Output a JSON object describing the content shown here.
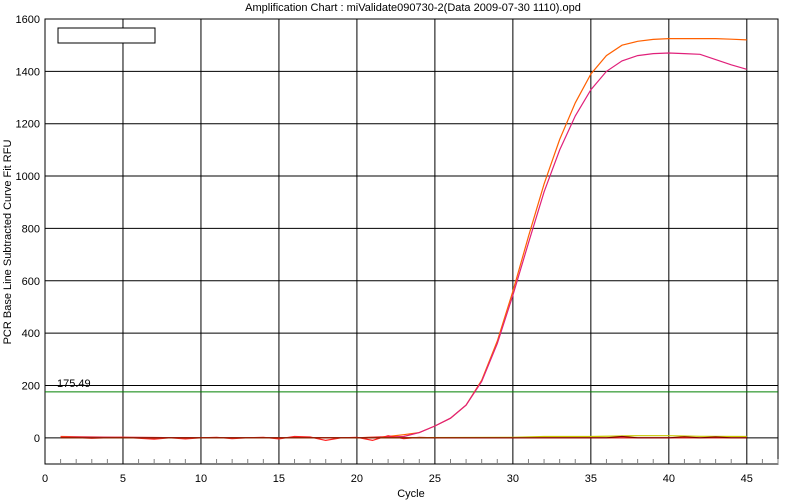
{
  "chart_data": {
    "type": "line",
    "title": "Amplification Chart : miValidate090730-2(Data 2009-07-30 1110).opd",
    "xlabel": "Cycle",
    "ylabel": "PCR Base Line Subtracted Curve Fit RFU",
    "xlim": [
      0,
      47
    ],
    "ylim": [
      -100,
      1600
    ],
    "x_ticks": [
      0,
      5,
      10,
      15,
      20,
      25,
      30,
      35,
      40,
      45
    ],
    "y_ticks": [
      0,
      200,
      400,
      600,
      800,
      1000,
      1200,
      1400,
      1600
    ],
    "grid": true,
    "threshold": {
      "value": 175.49,
      "label": "175.49",
      "color": "#008000"
    },
    "legend": {
      "placement": "top-left",
      "entries": []
    },
    "series": [
      {
        "color": "#ff6000",
        "x": [
          1,
          5,
          10,
          15,
          20,
          22,
          23,
          24,
          25,
          26,
          27,
          28,
          29,
          30,
          31,
          32,
          33,
          34,
          35,
          36,
          37,
          38,
          39,
          40,
          41,
          42,
          43,
          44,
          45
        ],
        "y": [
          5,
          2,
          0,
          0,
          0,
          5,
          12,
          20,
          45,
          75,
          125,
          220,
          370,
          560,
          770,
          970,
          1140,
          1280,
          1390,
          1460,
          1500,
          1515,
          1522,
          1525,
          1525,
          1525,
          1525,
          1523,
          1520
        ]
      },
      {
        "color": "#e0207a",
        "x": [
          1,
          5,
          10,
          15,
          20,
          22,
          23,
          24,
          25,
          26,
          27,
          28,
          29,
          30,
          31,
          32,
          33,
          34,
          35,
          36,
          37,
          38,
          39,
          40,
          41,
          42,
          43,
          44,
          45
        ],
        "y": [
          3,
          2,
          0,
          0,
          0,
          3,
          5,
          20,
          45,
          75,
          125,
          215,
          360,
          545,
          745,
          940,
          1100,
          1230,
          1330,
          1400,
          1440,
          1460,
          1468,
          1470,
          1468,
          1465,
          1445,
          1425,
          1408
        ]
      },
      {
        "color": "#ff2020",
        "x": [
          1,
          3,
          5,
          7,
          8,
          9,
          10,
          11,
          12,
          13,
          14,
          15,
          16,
          17,
          18,
          19,
          20,
          21,
          22,
          23,
          24,
          25,
          27,
          30,
          35,
          40,
          45
        ],
        "y": [
          3,
          -2,
          2,
          -5,
          0,
          -4,
          0,
          2,
          -3,
          0,
          2,
          -4,
          5,
          3,
          -10,
          0,
          2,
          -10,
          8,
          -3,
          2,
          0,
          0,
          0,
          0,
          0,
          0
        ]
      },
      {
        "color": "#c8c800",
        "x": [
          1,
          10,
          20,
          30,
          32,
          35,
          38,
          40,
          42,
          45
        ],
        "y": [
          0,
          0,
          0,
          2,
          5,
          5,
          8,
          8,
          6,
          5
        ]
      },
      {
        "color": "#800000",
        "x": [
          1,
          10,
          20,
          30,
          35,
          36,
          37,
          38,
          40,
          41,
          42,
          43,
          44,
          45
        ],
        "y": [
          0,
          0,
          0,
          0,
          0,
          0,
          5,
          0,
          0,
          4,
          0,
          3,
          0,
          0
        ]
      }
    ]
  }
}
